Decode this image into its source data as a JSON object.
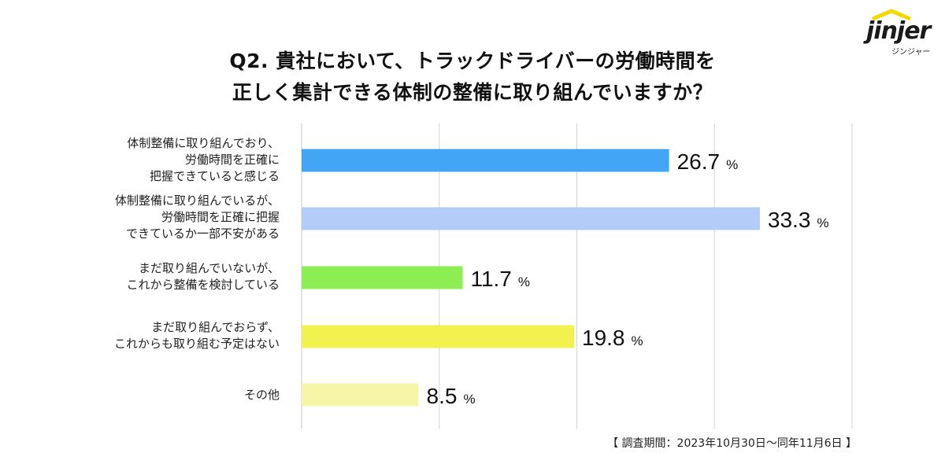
{
  "title_line1": "Q2. 貴社において、トラックドライバーの労働時間を",
  "title_line2": "正しく集計できる体制の整備に取り組んでいますか？",
  "logo": {
    "word": "jinjer",
    "sub": "ジンジャー",
    "icon": "house-roof-icon"
  },
  "footnote": "【 調査期間：2023年10月30日～同年11月6日 】",
  "chart_data": {
    "type": "bar",
    "orientation": "horizontal",
    "title": "Q2. 貴社において、トラックドライバーの労働時間を正しく集計できる体制の整備に取り組んでいますか？",
    "categories": [
      "体制整備に取り組んでおり、\n労働時間を正確に\n把握できていると感じる",
      "体制整備に取り組んでいるが、\n労働時間を正確に把握\nできているか一部不安がある",
      "まだ取り組んでいないが、\nこれから整備を検討している",
      "まだ取り組んでおらず、\nこれからも取り組む予定はない",
      "その他"
    ],
    "values": [
      26.7,
      33.3,
      11.7,
      19.8,
      8.5
    ],
    "value_labels": [
      "26.7",
      "33.3",
      "11.7",
      "19.8",
      "8.5"
    ],
    "unit": "%",
    "colors": [
      "#42a5f5",
      "#b3cdf8",
      "#8cee52",
      "#f2f24f",
      "#f7f5a8"
    ],
    "xlim": [
      0,
      40
    ],
    "grid": true,
    "gridline_color": "#d4d4d4"
  }
}
